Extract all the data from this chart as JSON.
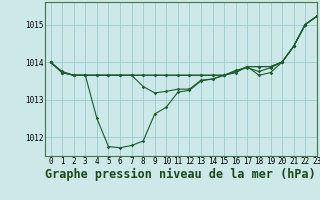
{
  "title": "Graphe pression niveau de la mer (hPa)",
  "bg_color": "#cce8e8",
  "grid_color": "#99cccc",
  "line_color": "#1a5c2a",
  "xlim": [
    -0.5,
    23
  ],
  "ylim": [
    1011.5,
    1015.6
  ],
  "yticks": [
    1012,
    1013,
    1014,
    1015
  ],
  "xticks": [
    0,
    1,
    2,
    3,
    4,
    5,
    6,
    7,
    8,
    9,
    10,
    11,
    12,
    13,
    14,
    15,
    16,
    17,
    18,
    19,
    20,
    21,
    22,
    23
  ],
  "series1": [
    1014.0,
    1013.75,
    1013.65,
    1013.65,
    1012.5,
    1011.75,
    1011.72,
    1011.78,
    1011.9,
    1012.62,
    1012.8,
    1013.2,
    1013.25,
    1013.5,
    1013.55,
    1013.65,
    1013.78,
    1013.85,
    1013.75,
    1013.85,
    1014.0,
    1014.42,
    1015.0,
    1015.22
  ],
  "series2": [
    1014.0,
    1013.72,
    1013.65,
    1013.65,
    1013.65,
    1013.65,
    1013.65,
    1013.65,
    1013.65,
    1013.65,
    1013.65,
    1013.65,
    1013.65,
    1013.65,
    1013.65,
    1013.65,
    1013.75,
    1013.88,
    1013.88,
    1013.88,
    1014.0,
    1014.42,
    1015.0,
    1015.22
  ],
  "series3": [
    1014.0,
    1013.72,
    1013.65,
    1013.65,
    1013.65,
    1013.65,
    1013.65,
    1013.65,
    1013.65,
    1013.65,
    1013.65,
    1013.65,
    1013.65,
    1013.65,
    1013.65,
    1013.65,
    1013.72,
    1013.88,
    1013.88,
    1013.88,
    1014.0,
    1014.42,
    1015.0,
    1015.22
  ],
  "series4": [
    1014.0,
    1013.72,
    1013.65,
    1013.65,
    1013.65,
    1013.65,
    1013.65,
    1013.65,
    1013.35,
    1013.18,
    1013.22,
    1013.28,
    1013.28,
    1013.52,
    1013.55,
    1013.65,
    1013.75,
    1013.88,
    1013.65,
    1013.72,
    1014.0,
    1014.42,
    1015.0,
    1015.22
  ],
  "tick_fontsize": 5.5,
  "title_fontsize": 8.5
}
